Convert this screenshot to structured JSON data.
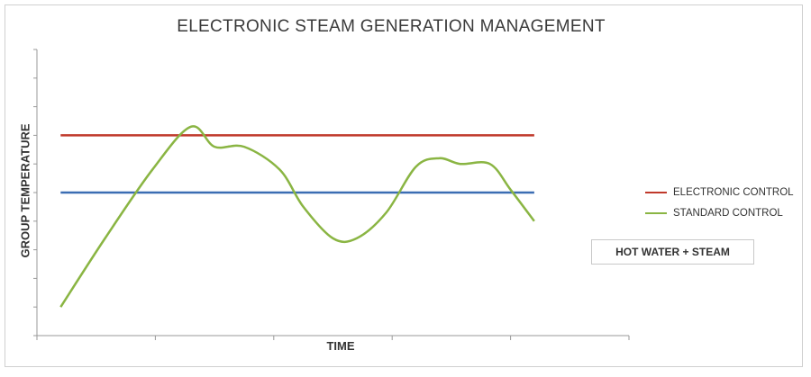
{
  "chart_data": {
    "type": "line",
    "title": "ELECTRONIC STEAM GENERATION MANAGEMENT",
    "xlabel": "TIME",
    "ylabel": "GROUP TEMPERATURE",
    "xlim": [
      0,
      20
    ],
    "ylim": [
      0,
      10
    ],
    "grid": false,
    "legend_position": "right",
    "annotation": "HOT WATER + STEAM",
    "series": [
      {
        "name": "ELECTRONIC CONTROL",
        "color": "#c0392b",
        "x": [
          0.8,
          16.8
        ],
        "y": [
          7,
          7
        ]
      },
      {
        "name": "",
        "color": "#3b6db3",
        "x": [
          0.8,
          16.8
        ],
        "y": [
          5,
          5
        ]
      },
      {
        "name": "STANDARD CONTROL",
        "color": "#8ab543",
        "x": [
          0.8,
          2.3,
          3.9,
          5.2,
          6.0,
          7.0,
          8.2,
          9.0,
          10.0,
          10.8,
          11.8,
          12.8,
          13.6,
          14.3,
          15.3,
          16.0,
          16.8
        ],
        "y": [
          1.0,
          3.4,
          5.8,
          7.3,
          6.6,
          6.6,
          5.8,
          4.5,
          3.4,
          3.4,
          4.3,
          5.9,
          6.2,
          6.0,
          6.0,
          5.1,
          4.0
        ]
      }
    ]
  }
}
